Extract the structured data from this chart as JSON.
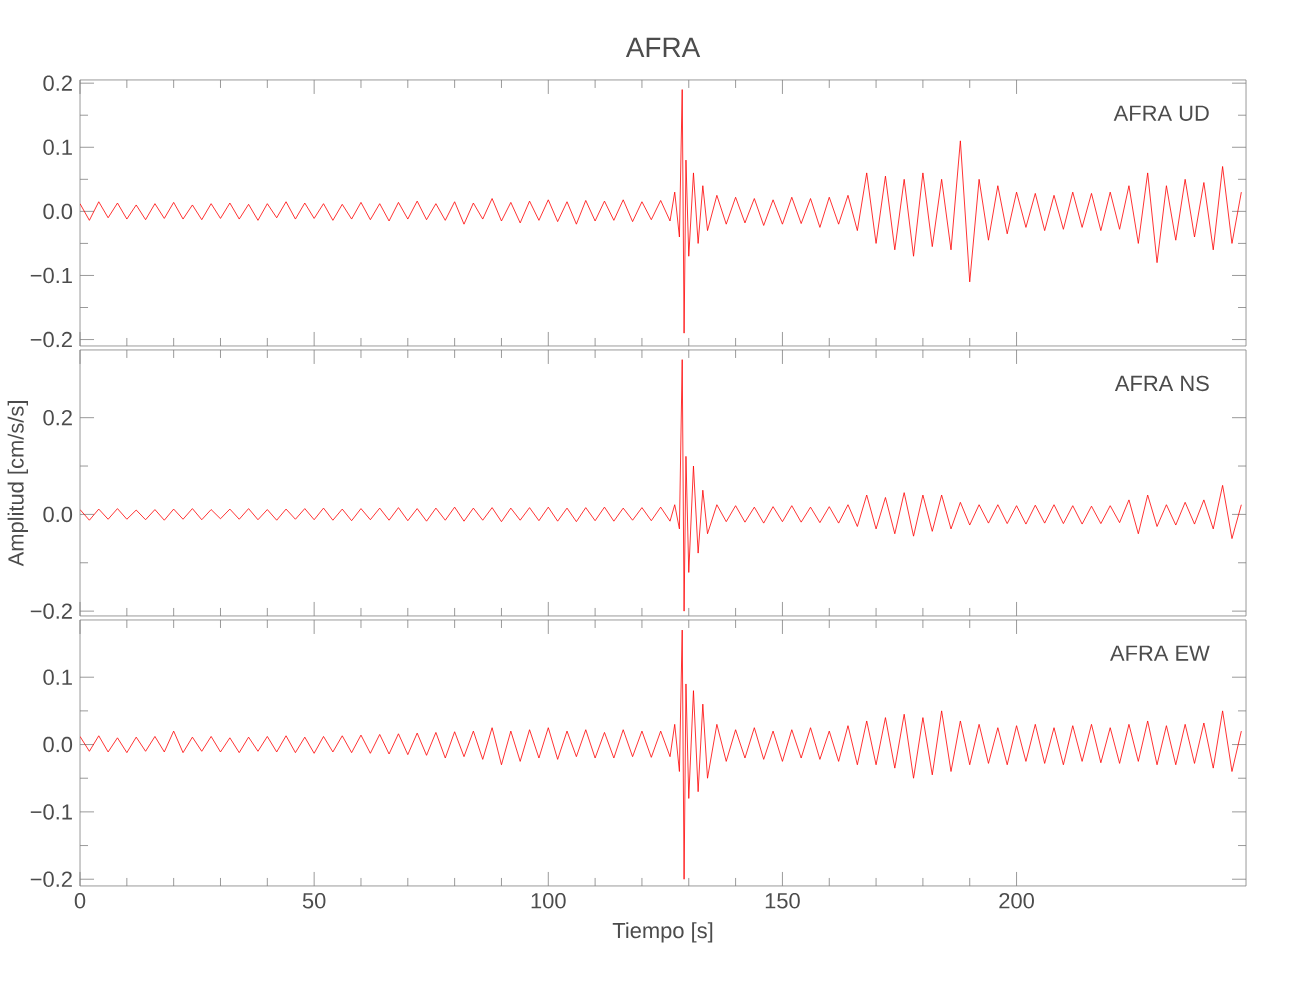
{
  "chart_data": [
    {
      "type": "line",
      "title": "AFRA",
      "annotations": [
        "AFRA UD"
      ],
      "color": "#ff0000",
      "tick_labels": "y",
      "xlim": [
        0,
        249
      ],
      "xticks": [
        0,
        50,
        100,
        150,
        200
      ],
      "ylim": [
        -0.21,
        0.205
      ],
      "yticks": [
        {
          "value": -0.2,
          "label": "−0.2"
        },
        {
          "value": -0.1,
          "label": "−0.1"
        },
        {
          "value": 0,
          "label": "0.0"
        },
        {
          "value": 0.1,
          "label": "0.1"
        },
        {
          "value": 0.2,
          "label": "0.2"
        }
      ],
      "x": [
        0,
        2,
        4,
        6,
        8,
        10,
        12,
        14,
        16,
        18,
        20,
        22,
        24,
        26,
        28,
        30,
        32,
        34,
        36,
        38,
        40,
        42,
        44,
        46,
        48,
        50,
        52,
        54,
        56,
        58,
        60,
        62,
        64,
        66,
        68,
        70,
        72,
        74,
        76,
        78,
        80,
        82,
        84,
        86,
        88,
        90,
        92,
        94,
        96,
        98,
        100,
        102,
        104,
        106,
        108,
        110,
        112,
        114,
        116,
        118,
        120,
        122,
        124,
        126,
        127,
        128,
        128.6,
        129,
        129.4,
        130,
        131,
        132,
        133,
        134,
        136,
        138,
        140,
        142,
        144,
        146,
        148,
        150,
        152,
        154,
        156,
        158,
        160,
        162,
        164,
        166,
        168,
        170,
        172,
        174,
        176,
        178,
        180,
        182,
        184,
        186,
        188,
        190,
        192,
        194,
        196,
        198,
        200,
        202,
        204,
        206,
        208,
        210,
        212,
        214,
        216,
        218,
        220,
        222,
        224,
        226,
        228,
        230,
        232,
        234,
        236,
        238,
        240,
        242,
        244,
        246,
        248
      ],
      "values": [
        0.012,
        -0.014,
        0.015,
        -0.01,
        0.013,
        -0.012,
        0.01,
        -0.013,
        0.012,
        -0.011,
        0.014,
        -0.012,
        0.01,
        -0.013,
        0.012,
        -0.011,
        0.013,
        -0.012,
        0.011,
        -0.014,
        0.012,
        -0.01,
        0.015,
        -0.012,
        0.013,
        -0.011,
        0.012,
        -0.014,
        0.011,
        -0.012,
        0.014,
        -0.013,
        0.012,
        -0.015,
        0.014,
        -0.012,
        0.016,
        -0.013,
        0.012,
        -0.014,
        0.015,
        -0.02,
        0.013,
        -0.012,
        0.02,
        -0.015,
        0.014,
        -0.018,
        0.016,
        -0.014,
        0.018,
        -0.016,
        0.015,
        -0.02,
        0.017,
        -0.015,
        0.016,
        -0.014,
        0.018,
        -0.016,
        0.015,
        -0.013,
        0.017,
        -0.015,
        0.03,
        -0.04,
        0.19,
        -0.19,
        0.08,
        -0.07,
        0.06,
        -0.05,
        0.04,
        -0.03,
        0.025,
        -0.02,
        0.022,
        -0.018,
        0.02,
        -0.022,
        0.018,
        -0.02,
        0.022,
        -0.019,
        0.02,
        -0.025,
        0.022,
        -0.02,
        0.025,
        -0.03,
        0.06,
        -0.05,
        0.055,
        -0.06,
        0.05,
        -0.07,
        0.06,
        -0.055,
        0.05,
        -0.06,
        0.11,
        -0.11,
        0.05,
        -0.045,
        0.04,
        -0.035,
        0.03,
        -0.025,
        0.028,
        -0.03,
        0.025,
        -0.028,
        0.03,
        -0.025,
        0.028,
        -0.03,
        0.03,
        -0.028,
        0.04,
        -0.05,
        0.06,
        -0.08,
        0.04,
        -0.045,
        0.05,
        -0.04,
        0.045,
        -0.06,
        0.07,
        -0.05,
        0.03
      ]
    },
    {
      "type": "line",
      "ylabel": "Amplitud [cm/s/s]",
      "annotations": [
        "AFRA NS"
      ],
      "color": "#ff0000",
      "tick_labels": "y",
      "xlim": [
        0,
        249
      ],
      "xticks": [
        0,
        50,
        100,
        150,
        200
      ],
      "ylim": [
        -0.21,
        0.34
      ],
      "yticks": [
        {
          "value": -0.2,
          "label": "−0.2"
        },
        {
          "value": 0,
          "label": "0.0"
        },
        {
          "value": 0.2,
          "label": "0.2"
        }
      ],
      "x": [
        0,
        2,
        4,
        6,
        8,
        10,
        12,
        14,
        16,
        18,
        20,
        22,
        24,
        26,
        28,
        30,
        32,
        34,
        36,
        38,
        40,
        42,
        44,
        46,
        48,
        50,
        52,
        54,
        56,
        58,
        60,
        62,
        64,
        66,
        68,
        70,
        72,
        74,
        76,
        78,
        80,
        82,
        84,
        86,
        88,
        90,
        92,
        94,
        96,
        98,
        100,
        102,
        104,
        106,
        108,
        110,
        112,
        114,
        116,
        118,
        120,
        122,
        124,
        126,
        127,
        128,
        128.6,
        129,
        129.4,
        130,
        131,
        132,
        133,
        134,
        136,
        138,
        140,
        142,
        144,
        146,
        148,
        150,
        152,
        154,
        156,
        158,
        160,
        162,
        164,
        166,
        168,
        170,
        172,
        174,
        176,
        178,
        180,
        182,
        184,
        186,
        188,
        190,
        192,
        194,
        196,
        198,
        200,
        202,
        204,
        206,
        208,
        210,
        212,
        214,
        216,
        218,
        220,
        222,
        224,
        226,
        228,
        230,
        232,
        234,
        236,
        238,
        240,
        242,
        244,
        246,
        248
      ],
      "values": [
        0.01,
        -0.012,
        0.011,
        -0.01,
        0.012,
        -0.01,
        0.009,
        -0.011,
        0.01,
        -0.012,
        0.011,
        -0.01,
        0.012,
        -0.011,
        0.01,
        -0.009,
        0.011,
        -0.01,
        0.012,
        -0.011,
        0.01,
        -0.012,
        0.011,
        -0.01,
        0.012,
        -0.011,
        0.013,
        -0.012,
        0.011,
        -0.013,
        0.012,
        -0.011,
        0.013,
        -0.012,
        0.014,
        -0.013,
        0.012,
        -0.014,
        0.013,
        -0.012,
        0.015,
        -0.014,
        0.013,
        -0.012,
        0.014,
        -0.015,
        0.013,
        -0.012,
        0.014,
        -0.013,
        0.015,
        -0.014,
        0.013,
        -0.015,
        0.014,
        -0.013,
        0.015,
        -0.014,
        0.013,
        -0.012,
        0.014,
        -0.013,
        0.015,
        -0.014,
        0.02,
        -0.03,
        0.32,
        -0.2,
        0.12,
        -0.12,
        0.1,
        -0.08,
        0.05,
        -0.04,
        0.02,
        -0.015,
        0.018,
        -0.016,
        0.015,
        -0.018,
        0.016,
        -0.015,
        0.018,
        -0.016,
        0.015,
        -0.017,
        0.016,
        -0.018,
        0.02,
        -0.025,
        0.04,
        -0.03,
        0.035,
        -0.04,
        0.045,
        -0.045,
        0.04,
        -0.035,
        0.04,
        -0.03,
        0.025,
        -0.022,
        0.02,
        -0.018,
        0.02,
        -0.019,
        0.018,
        -0.02,
        0.019,
        -0.018,
        0.02,
        -0.019,
        0.018,
        -0.02,
        0.017,
        -0.019,
        0.018,
        -0.017,
        0.03,
        -0.04,
        0.04,
        -0.025,
        0.02,
        -0.022,
        0.025,
        -0.02,
        0.03,
        -0.03,
        0.06,
        -0.05,
        0.02
      ]
    },
    {
      "type": "line",
      "xlabel": "Tiempo [s]",
      "annotations": [
        "AFRA EW"
      ],
      "color": "#ff0000",
      "xlim": [
        0,
        249
      ],
      "xticks": [
        0,
        50,
        100,
        150,
        200
      ],
      "ylim": [
        -0.21,
        0.185
      ],
      "yticks": [
        {
          "value": -0.2,
          "label": "−0.2"
        },
        {
          "value": -0.1,
          "label": "−0.1"
        },
        {
          "value": 0,
          "label": "0.0"
        },
        {
          "value": 0.1,
          "label": "0.1"
        }
      ],
      "x": [
        0,
        2,
        4,
        6,
        8,
        10,
        12,
        14,
        16,
        18,
        20,
        22,
        24,
        26,
        28,
        30,
        32,
        34,
        36,
        38,
        40,
        42,
        44,
        46,
        48,
        50,
        52,
        54,
        56,
        58,
        60,
        62,
        64,
        66,
        68,
        70,
        72,
        74,
        76,
        78,
        80,
        82,
        84,
        86,
        88,
        90,
        92,
        94,
        96,
        98,
        100,
        102,
        104,
        106,
        108,
        110,
        112,
        114,
        116,
        118,
        120,
        122,
        124,
        126,
        127,
        128,
        128.6,
        129,
        129.4,
        130,
        131,
        132,
        133,
        134,
        136,
        138,
        140,
        142,
        144,
        146,
        148,
        150,
        152,
        154,
        156,
        158,
        160,
        162,
        164,
        166,
        168,
        170,
        172,
        174,
        176,
        178,
        180,
        182,
        184,
        186,
        188,
        190,
        192,
        194,
        196,
        198,
        200,
        202,
        204,
        206,
        208,
        210,
        212,
        214,
        216,
        218,
        220,
        222,
        224,
        226,
        228,
        230,
        232,
        234,
        236,
        238,
        240,
        242,
        244,
        246,
        248
      ],
      "values": [
        0.012,
        -0.01,
        0.013,
        -0.011,
        0.01,
        -0.012,
        0.011,
        -0.01,
        0.012,
        -0.011,
        0.02,
        -0.012,
        0.011,
        -0.01,
        0.012,
        -0.011,
        0.01,
        -0.012,
        0.011,
        -0.01,
        0.012,
        -0.011,
        0.013,
        -0.012,
        0.011,
        -0.013,
        0.012,
        -0.011,
        0.013,
        -0.012,
        0.014,
        -0.013,
        0.015,
        -0.014,
        0.016,
        -0.015,
        0.017,
        -0.016,
        0.018,
        -0.02,
        0.019,
        -0.018,
        0.02,
        -0.022,
        0.025,
        -0.03,
        0.02,
        -0.025,
        0.022,
        -0.02,
        0.025,
        -0.022,
        0.02,
        -0.018,
        0.022,
        -0.02,
        0.018,
        -0.02,
        0.022,
        -0.018,
        0.02,
        -0.019,
        0.02,
        -0.018,
        0.03,
        -0.04,
        0.17,
        -0.2,
        0.09,
        -0.08,
        0.08,
        -0.07,
        0.06,
        -0.05,
        0.03,
        -0.025,
        0.022,
        -0.02,
        0.025,
        -0.022,
        0.02,
        -0.025,
        0.022,
        -0.02,
        0.025,
        -0.022,
        0.02,
        -0.025,
        0.028,
        -0.03,
        0.035,
        -0.03,
        0.04,
        -0.035,
        0.045,
        -0.05,
        0.04,
        -0.045,
        0.05,
        -0.04,
        0.035,
        -0.03,
        0.03,
        -0.028,
        0.025,
        -0.03,
        0.028,
        -0.025,
        0.03,
        -0.028,
        0.025,
        -0.03,
        0.028,
        -0.025,
        0.03,
        -0.027,
        0.025,
        -0.028,
        0.03,
        -0.025,
        0.035,
        -0.03,
        0.028,
        -0.03,
        0.03,
        -0.028,
        0.032,
        -0.035,
        0.05,
        -0.04,
        0.02
      ]
    }
  ]
}
